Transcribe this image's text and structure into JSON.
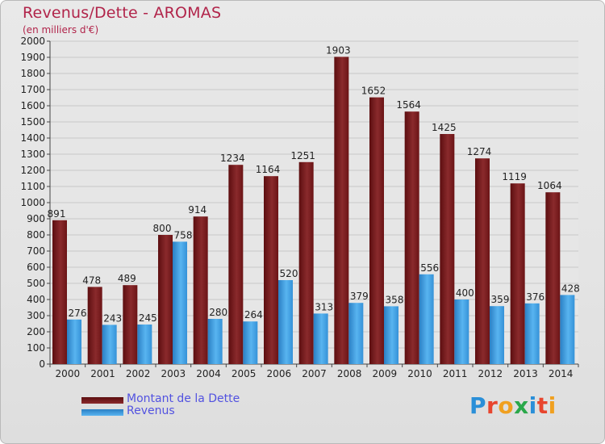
{
  "title": "Revenus/Dette - AROMAS",
  "subtitle": "(en milliers d'€)",
  "chart_data": {
    "type": "bar",
    "categories": [
      "2000",
      "2001",
      "2002",
      "2003",
      "2004",
      "2005",
      "2006",
      "2007",
      "2008",
      "2009",
      "2010",
      "2011",
      "2012",
      "2013",
      "2014"
    ],
    "series": [
      {
        "name": "Montant de la Dette",
        "color": "#7a1a1c",
        "values": [
          891,
          478,
          489,
          800,
          914,
          1234,
          1164,
          1251,
          1903,
          1652,
          1564,
          1425,
          1274,
          1119,
          1064
        ]
      },
      {
        "name": "Revenus",
        "color": "#3d9be0",
        "values": [
          276,
          243,
          245,
          758,
          280,
          264,
          520,
          313,
          379,
          358,
          556,
          400,
          359,
          376,
          428
        ]
      }
    ],
    "ylim": [
      0,
      2000
    ],
    "yticks": [
      0,
      100,
      200,
      300,
      400,
      500,
      600,
      700,
      800,
      900,
      1000,
      1100,
      1200,
      1300,
      1400,
      1500,
      1600,
      1700,
      1800,
      1900,
      2000
    ],
    "grid": true,
    "legend": "bottom-left"
  },
  "logo": {
    "text": "Proxiti",
    "colors": [
      "#2a8fd8",
      "#e8452e",
      "#f0a020",
      "#2aa84a",
      "#2a8fd8",
      "#e8452e",
      "#f0a020"
    ]
  }
}
